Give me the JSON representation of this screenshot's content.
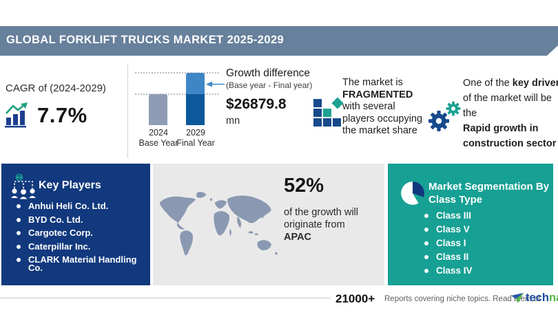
{
  "banner": {
    "title": "GLOBAL FORKLIFT TRUCKS MARKET 2025-2029"
  },
  "cagr": {
    "label": "CAGR of (2024-2029)",
    "value": "7.7%"
  },
  "growth_chart": {
    "bars": [
      {
        "year": "2024",
        "label": "Base Year"
      },
      {
        "year": "2029",
        "label": "Final Year"
      }
    ],
    "annotation_title": "Growth difference",
    "annotation_sub": "(Base year - Final year)",
    "amount": "$26879.8",
    "unit": "mn"
  },
  "fragmented": {
    "line1": "The market is",
    "line2": "FRAGMENTED",
    "line3": "with several",
    "line4": "players occupying",
    "line5": "the market share"
  },
  "key_driver": {
    "line1_normal": "One of the ",
    "line1_bold": "key drivers",
    "line2": "of the market will be the",
    "line3_bold": "Rapid growth in",
    "line4_bold": "construction sector"
  },
  "key_players": {
    "title": "Key Players",
    "items": [
      "Anhui Heli Co. Ltd.",
      "BYD Co. Ltd.",
      "Cargotec Corp.",
      "Caterpillar Inc.",
      "CLARK Material Handling Co."
    ]
  },
  "apac": {
    "percent": "52%",
    "line1": "of the growth will",
    "line2": "originate from",
    "region": "APAC"
  },
  "segmentation": {
    "title_line1": "Market Segmentation By",
    "title_line2": "Class Type",
    "items": [
      "Class III",
      "Class V",
      "Class I",
      "Class II",
      "Class IV"
    ]
  },
  "footer": {
    "count": "21000+",
    "text": "Reports covering niche topics. Read them at",
    "brand_part1": "tech",
    "brand_part2": "navio"
  },
  "colors": {
    "banner": "#67809b",
    "navy_box": "#12397e",
    "teal_box": "#17a094",
    "gray_panel": "#e9e9e9",
    "bar_base_year": "#8e9cb5",
    "bar_final_dark": "#0b589b",
    "bar_final_light": "#3e86c6",
    "accent_green": "#1fa07e",
    "brand_blue": "#1b4a9e",
    "brand_green": "#58b847"
  },
  "chart_data": {
    "type": "bar",
    "title": "Growth difference (Base year - Final year)",
    "categories": [
      "2024 Base Year",
      "2029 Final Year"
    ],
    "values_relative": [
      0.59,
      1.0
    ],
    "growth_difference_amount_mn": 26879.8,
    "currency": "USD",
    "cagr_2024_2029_pct": 7.7,
    "apac_growth_share_pct": 52,
    "axis": "none",
    "legend": "none"
  }
}
